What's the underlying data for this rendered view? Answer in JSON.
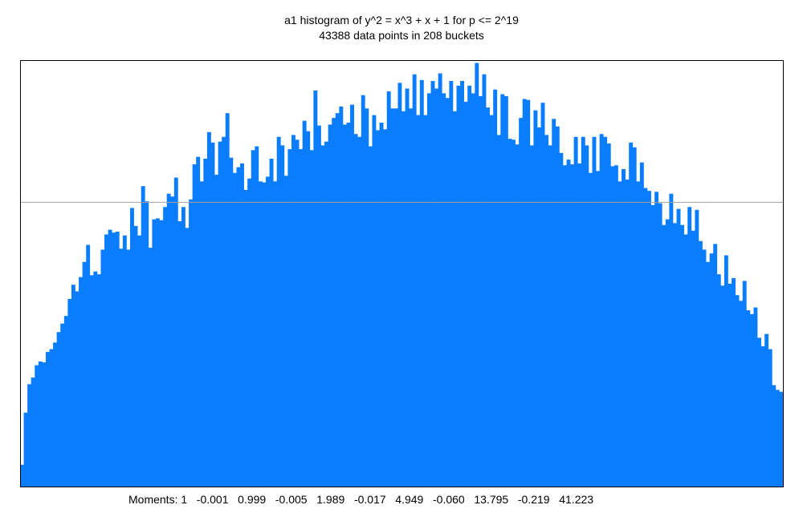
{
  "title": "a1 histogram of y^2 = x^3 + x + 1 for p <= 2^19",
  "subtitle": "43388 data points in 208 buckets",
  "moments_text": "Moments: 1   -0.001   0.999   -0.005   1.989   -0.017   4.949   -0.060   13.795   -0.219   41.223",
  "colors": {
    "bar": "#0a7dff",
    "reference_line": "#a0a0a0",
    "frame": "#000000"
  },
  "chart_data": {
    "type": "bar",
    "title": "a1 histogram of y^2 = x^3 + x + 1 for p <= 2^19",
    "subtitle": "43388 data points in 208 buckets",
    "bucket_count": 208,
    "values": [
      23,
      78,
      108,
      115,
      128,
      132,
      131,
      142,
      145,
      152,
      163,
      172,
      180,
      198,
      213,
      206,
      221,
      237,
      255,
      223,
      227,
      224,
      250,
      266,
      271,
      268,
      269,
      251,
      265,
      250,
      294,
      275,
      265,
      317,
      301,
      252,
      282,
      283,
      281,
      295,
      309,
      306,
      326,
      280,
      295,
      273,
      303,
      340,
      348,
      322,
      346,
      374,
      363,
      329,
      364,
      369,
      394,
      347,
      331,
      337,
      341,
      313,
      325,
      355,
      359,
      322,
      321,
      327,
      346,
      322,
      369,
      360,
      328,
      356,
      371,
      366,
      356,
      386,
      375,
      355,
      418,
      381,
      360,
      364,
      382,
      389,
      394,
      401,
      382,
      384,
      403,
      372,
      369,
      413,
      399,
      359,
      392,
      376,
      384,
      377,
      417,
      399,
      399,
      426,
      396,
      420,
      399,
      435,
      392,
      429,
      392,
      415,
      428,
      420,
      436,
      415,
      410,
      428,
      396,
      423,
      428,
      406,
      423,
      415,
      447,
      412,
      435,
      400,
      392,
      419,
      371,
      414,
      412,
      367,
      366,
      361,
      389,
      409,
      408,
      360,
      397,
      379,
      405,
      371,
      360,
      388,
      380,
      352,
      339,
      345,
      340,
      369,
      341,
      369,
      360,
      331,
      369,
      333,
      372,
      369,
      362,
      338,
      339,
      322,
      335,
      324,
      363,
      358,
      322,
      342,
      315,
      312,
      297,
      311,
      299,
      276,
      282,
      309,
      278,
      293,
      276,
      266,
      295,
      270,
      292,
      259,
      250,
      237,
      246,
      256,
      224,
      212,
      244,
      214,
      220,
      202,
      196,
      217,
      186,
      182,
      189,
      157,
      148,
      161,
      145,
      107,
      102,
      100
    ],
    "reference_level": 300,
    "ylim": [
      0,
      450
    ],
    "moments": [
      1,
      -0.001,
      0.999,
      -0.005,
      1.989,
      -0.017,
      4.949,
      -0.06,
      13.795,
      -0.219,
      41.223
    ],
    "grid": false
  }
}
